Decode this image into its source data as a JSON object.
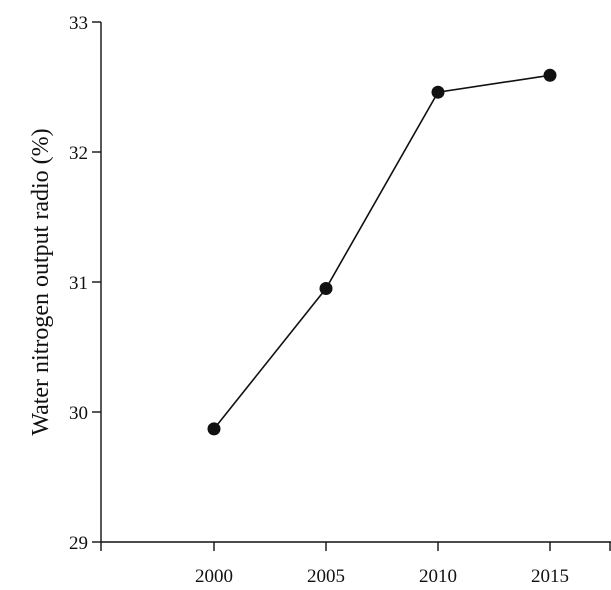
{
  "chart_data": {
    "type": "line",
    "title": "",
    "xlabel": "",
    "ylabel": "Water nitrogen output radio  (%)",
    "x": [
      2000,
      2005,
      2010,
      2015
    ],
    "x_tick_labels": [
      "2000",
      "2005",
      "2010",
      "2015"
    ],
    "series": [
      {
        "values": [
          29.87,
          30.95,
          32.46,
          32.59
        ]
      }
    ],
    "y_ticks": [
      29,
      30,
      31,
      32,
      33
    ],
    "y_tick_labels": [
      "29",
      "30",
      "31",
      "32",
      "33"
    ],
    "ylim": [
      29,
      33
    ],
    "grid": false,
    "legend": "none",
    "colors": {
      "line": "#111111",
      "marker": "#111111"
    }
  }
}
